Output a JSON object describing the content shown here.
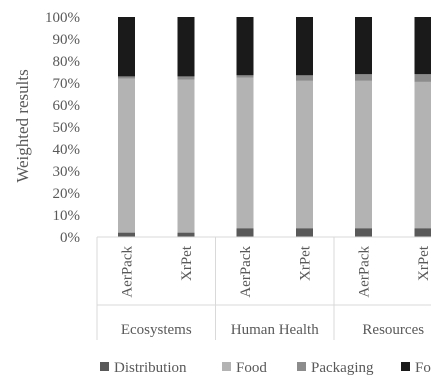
{
  "chart_data": {
    "type": "bar",
    "stacked": true,
    "ylabel": "Weighted results",
    "ylim": [
      0,
      100
    ],
    "y_ticks": [
      "0%",
      "10%",
      "20%",
      "30%",
      "40%",
      "50%",
      "60%",
      "70%",
      "80%",
      "90%",
      "100%"
    ],
    "groups": [
      {
        "label": "Ecosystems",
        "categories": [
          "AerPack",
          "XrPet"
        ]
      },
      {
        "label": "Human Health",
        "categories": [
          "AerPack",
          "XrPet"
        ]
      },
      {
        "label": "Resources",
        "categories": [
          "AerPack",
          "XrPet"
        ]
      }
    ],
    "series": [
      {
        "name": "Distribution",
        "color": "#595959",
        "values": [
          2,
          2,
          4,
          4,
          4,
          4
        ]
      },
      {
        "name": "Food",
        "color": "#b3b3b3",
        "values": [
          70,
          69.5,
          68.5,
          67,
          67,
          66.5
        ]
      },
      {
        "name": "Packaging",
        "color": "#8c8c8c",
        "values": [
          1,
          1.5,
          1,
          2.5,
          3,
          3.5
        ]
      },
      {
        "name": "Fo",
        "color": "#1a1a1a",
        "values": [
          27,
          27,
          26.5,
          26.5,
          26,
          26
        ]
      }
    ],
    "grid": false,
    "legend_position": "bottom"
  }
}
